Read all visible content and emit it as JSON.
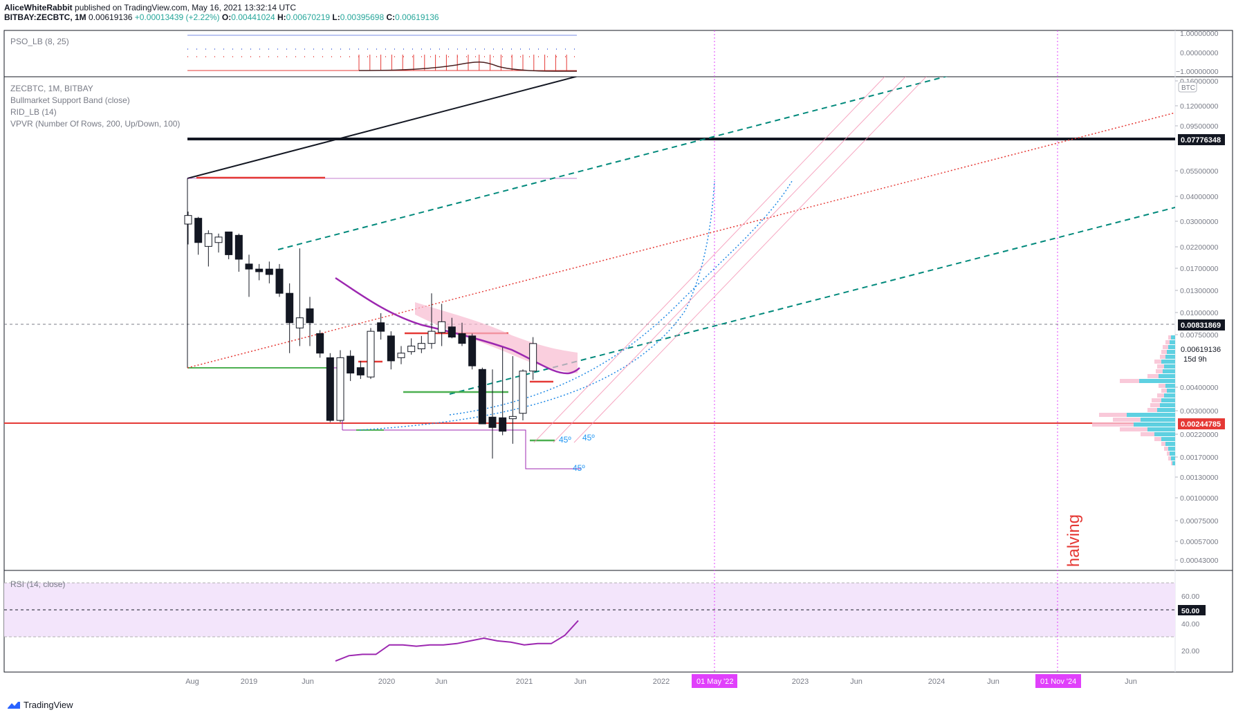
{
  "header": {
    "author": "AliceWhiteRabbit",
    "published": "published on TradingView.com, May 16, 2021 13:32:14 UTC",
    "symbol": "BITBAY:ZECBTC, 1M",
    "price": "0.00619136",
    "change": "+0.00013439 (+2.22%)",
    "o_label": "O:",
    "o": "0.00441024",
    "h_label": "H:",
    "h": "0.00670219",
    "l_label": "L:",
    "l": "0.00395698",
    "c_label": "C:",
    "c": "0.00619136"
  },
  "indicators": {
    "pso": "PSO_LB (8, 25)",
    "symbol_line": "ZECBTC, 1M, BITBAY",
    "bmsb": "Bullmarket Support Band (close)",
    "rid": "RID_LB (14)",
    "vpvr": "VPVR (Number Of Rows, 200, Up/Down, 100)",
    "rsi": "RSI (14, close)"
  },
  "annotations": {
    "halving": "halving",
    "angle1": "45º",
    "angle2": "45º",
    "angle3": "45º"
  },
  "pso_axis": [
    "1.00000000",
    "0.00000000",
    "−1.00000000"
  ],
  "price_axis": {
    "currency": "BTC",
    "ticks": [
      "0.16000000",
      "0.12000000",
      "0.09500000",
      "0.05500000",
      "0.04000000",
      "0.03000000",
      "0.02200000",
      "0.01700000",
      "0.01300000",
      "0.01000000",
      "0.00750000",
      "0.00400000",
      "0.00300000",
      "0.00220000",
      "0.00170000",
      "0.00130000",
      "0.00100000",
      "0.00075000",
      "0.00057000",
      "0.00043000"
    ],
    "badges": {
      "resistance": "0.07776348",
      "dashed": "0.00831869",
      "last": "0.00619136",
      "countdown": "15d 9h",
      "support": "0.00244785"
    }
  },
  "rsi_axis": {
    "ticks": [
      "60.00",
      "40.00",
      "20.00"
    ],
    "badge": "50.00"
  },
  "time_axis": {
    "ticks": [
      "Aug",
      "2019",
      "Jun",
      "2020",
      "Jun",
      "2021",
      "Jun",
      "2022",
      "2023",
      "Jun",
      "2024",
      "Jun",
      "25",
      "Jun"
    ],
    "marker1": "01 May '22",
    "marker2": "01 Nov '24"
  },
  "footer": {
    "brand": "TradingView"
  },
  "chart_data": {
    "type": "candlestick",
    "title": "BITBAY:ZECBTC, 1M",
    "y_scale": "log",
    "candles": [
      {
        "x": "2018-07",
        "o": 0.027,
        "h": 0.0315,
        "l": 0.021,
        "c": 0.03
      },
      {
        "x": "2018-08",
        "o": 0.029,
        "h": 0.0295,
        "l": 0.0185,
        "c": 0.0215
      },
      {
        "x": "2018-09",
        "o": 0.0205,
        "h": 0.025,
        "l": 0.016,
        "c": 0.024
      },
      {
        "x": "2018-10",
        "o": 0.0215,
        "h": 0.024,
        "l": 0.019,
        "c": 0.023
      },
      {
        "x": "2018-11",
        "o": 0.0245,
        "h": 0.0245,
        "l": 0.0175,
        "c": 0.0185
      },
      {
        "x": "2018-12",
        "o": 0.0235,
        "h": 0.024,
        "l": 0.015,
        "c": 0.0175
      },
      {
        "x": "2019-01",
        "o": 0.0165,
        "h": 0.0185,
        "l": 0.011,
        "c": 0.0155
      },
      {
        "x": "2019-02",
        "o": 0.0155,
        "h": 0.0165,
        "l": 0.0135,
        "c": 0.015
      },
      {
        "x": "2019-03",
        "o": 0.0155,
        "h": 0.017,
        "l": 0.013,
        "c": 0.0145
      },
      {
        "x": "2019-04",
        "o": 0.0155,
        "h": 0.0165,
        "l": 0.011,
        "c": 0.0115
      },
      {
        "x": "2019-05",
        "o": 0.0115,
        "h": 0.013,
        "l": 0.0055,
        "c": 0.008
      },
      {
        "x": "2019-06",
        "o": 0.0075,
        "h": 0.02,
        "l": 0.006,
        "c": 0.0085
      },
      {
        "x": "2019-07",
        "o": 0.0095,
        "h": 0.011,
        "l": 0.006,
        "c": 0.008
      },
      {
        "x": "2019-08",
        "o": 0.007,
        "h": 0.0073,
        "l": 0.0052,
        "c": 0.0055
      },
      {
        "x": "2019-09",
        "o": 0.0052,
        "h": 0.0055,
        "l": 0.00235,
        "c": 0.0024
      },
      {
        "x": "2019-10",
        "o": 0.0024,
        "h": 0.0057,
        "l": 0.00235,
        "c": 0.0052
      },
      {
        "x": "2019-11",
        "o": 0.0053,
        "h": 0.0057,
        "l": 0.0039,
        "c": 0.0043
      },
      {
        "x": "2019-12",
        "o": 0.0046,
        "h": 0.005,
        "l": 0.004,
        "c": 0.0042
      },
      {
        "x": "2020-01",
        "o": 0.0041,
        "h": 0.0075,
        "l": 0.004,
        "c": 0.0072
      },
      {
        "x": "2020-02",
        "o": 0.008,
        "h": 0.009,
        "l": 0.0065,
        "c": 0.0072
      },
      {
        "x": "2020-03",
        "o": 0.0068,
        "h": 0.0072,
        "l": 0.0045,
        "c": 0.005
      },
      {
        "x": "2020-04",
        "o": 0.0052,
        "h": 0.006,
        "l": 0.0048,
        "c": 0.0055
      },
      {
        "x": "2020-05",
        "o": 0.0056,
        "h": 0.0066,
        "l": 0.0054,
        "c": 0.006
      },
      {
        "x": "2020-06",
        "o": 0.0058,
        "h": 0.0068,
        "l": 0.0055,
        "c": 0.0062
      },
      {
        "x": "2020-07",
        "o": 0.0062,
        "h": 0.0115,
        "l": 0.0058,
        "c": 0.0072
      },
      {
        "x": "2020-08",
        "o": 0.0071,
        "h": 0.0101,
        "l": 0.006,
        "c": 0.0081
      },
      {
        "x": "2020-09",
        "o": 0.0076,
        "h": 0.0085,
        "l": 0.0066,
        "c": 0.0067
      },
      {
        "x": "2020-10",
        "o": 0.007,
        "h": 0.008,
        "l": 0.006,
        "c": 0.0062
      },
      {
        "x": "2020-11",
        "o": 0.0068,
        "h": 0.007,
        "l": 0.0045,
        "c": 0.0047
      },
      {
        "x": "2020-12",
        "o": 0.0045,
        "h": 0.0046,
        "l": 0.0023,
        "c": 0.0023
      },
      {
        "x": "2021-01",
        "o": 0.0025,
        "h": 0.0045,
        "l": 0.0015,
        "c": 0.0022
      },
      {
        "x": "2021-02",
        "o": 0.00248,
        "h": 0.0059,
        "l": 0.002,
        "c": 0.0021
      },
      {
        "x": "2021-03",
        "o": 0.00245,
        "h": 0.0053,
        "l": 0.0018,
        "c": 0.00252
      },
      {
        "x": "2021-04",
        "o": 0.00262,
        "h": 0.0045,
        "l": 0.0024,
        "c": 0.00441
      },
      {
        "x": "2021-05",
        "o": 0.00441,
        "h": 0.0067,
        "l": 0.00396,
        "c": 0.00619
      }
    ],
    "horizontal_levels": [
      0.07776348,
      0.00831869,
      0.00244785
    ],
    "rsi": {
      "name": "RSI (14, close)",
      "values": [
        12,
        16,
        17,
        17,
        24,
        24,
        23,
        24,
        24,
        25,
        27,
        29,
        27,
        26,
        24,
        25,
        25,
        31,
        42
      ],
      "levels": [
        70,
        50,
        30
      ]
    },
    "pso": {
      "name": "PSO_LB (8, 25)",
      "levels": [
        1,
        0,
        -1
      ]
    }
  }
}
